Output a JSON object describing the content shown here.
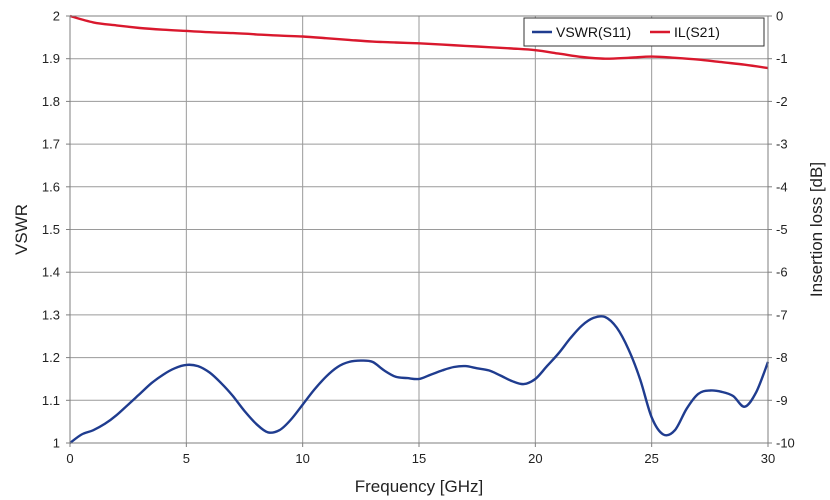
{
  "chart_data": {
    "type": "line",
    "xlabel": "Frequency [GHz]",
    "ylabel": "VSWR",
    "y2label": "Insertion loss [dB]",
    "xlim": [
      0,
      30
    ],
    "ylim": [
      1,
      2
    ],
    "y2lim": [
      -10,
      0
    ],
    "xticks": [
      "0",
      "5",
      "10",
      "15",
      "20",
      "25",
      "30"
    ],
    "yticks": [
      "1",
      "1.1",
      "1.2",
      "1.3",
      "1.4",
      "1.5",
      "1.6",
      "1.7",
      "1.8",
      "1.9",
      "2"
    ],
    "y2ticks": [
      "0",
      "-1",
      "-2",
      "-3",
      "-4",
      "-5",
      "-6",
      "-7",
      "-8",
      "-9",
      "-10"
    ],
    "grid": true,
    "legend_position": "top-right",
    "series": [
      {
        "name": "VSWR(S11)",
        "axis": "left",
        "color": "#1f3c8f",
        "x": [
          0,
          0.5,
          1,
          1.5,
          2,
          2.5,
          3,
          3.5,
          4,
          4.5,
          5,
          5.5,
          6,
          6.5,
          7,
          7.5,
          8,
          8.5,
          9,
          9.5,
          10,
          10.5,
          11,
          11.5,
          12,
          12.5,
          13,
          13.5,
          14,
          14.5,
          15,
          15.5,
          16,
          16.5,
          17,
          17.5,
          18,
          18.5,
          19,
          19.5,
          20,
          20.5,
          21,
          21.5,
          22,
          22.5,
          23,
          23.5,
          24,
          24.5,
          25,
          25.5,
          26,
          26.5,
          27,
          27.5,
          28,
          28.5,
          29,
          29.5,
          30
        ],
        "values": [
          1.0,
          1.02,
          1.03,
          1.045,
          1.065,
          1.09,
          1.115,
          1.14,
          1.16,
          1.175,
          1.183,
          1.18,
          1.165,
          1.14,
          1.11,
          1.075,
          1.045,
          1.025,
          1.03,
          1.055,
          1.09,
          1.125,
          1.155,
          1.178,
          1.19,
          1.193,
          1.19,
          1.17,
          1.155,
          1.152,
          1.15,
          1.16,
          1.17,
          1.178,
          1.18,
          1.175,
          1.17,
          1.158,
          1.145,
          1.138,
          1.15,
          1.18,
          1.21,
          1.245,
          1.275,
          1.293,
          1.295,
          1.27,
          1.22,
          1.15,
          1.06,
          1.02,
          1.03,
          1.08,
          1.115,
          1.123,
          1.12,
          1.11,
          1.085,
          1.12,
          1.19
        ]
      },
      {
        "name": "IL(S21)",
        "axis": "right",
        "color": "#d9182d",
        "x": [
          0,
          1,
          2,
          3,
          4,
          5,
          6,
          7,
          8,
          9,
          10,
          11,
          12,
          13,
          14,
          15,
          16,
          17,
          18,
          19,
          20,
          21,
          22,
          23,
          24,
          25,
          26,
          27,
          28,
          29,
          30
        ],
        "values": [
          0.0,
          -0.15,
          -0.22,
          -0.28,
          -0.32,
          -0.35,
          -0.38,
          -0.4,
          -0.43,
          -0.46,
          -0.48,
          -0.52,
          -0.56,
          -0.6,
          -0.62,
          -0.64,
          -0.67,
          -0.7,
          -0.73,
          -0.76,
          -0.8,
          -0.88,
          -0.96,
          -1.0,
          -0.98,
          -0.95,
          -0.98,
          -1.02,
          -1.08,
          -1.14,
          -1.22
        ]
      }
    ]
  }
}
